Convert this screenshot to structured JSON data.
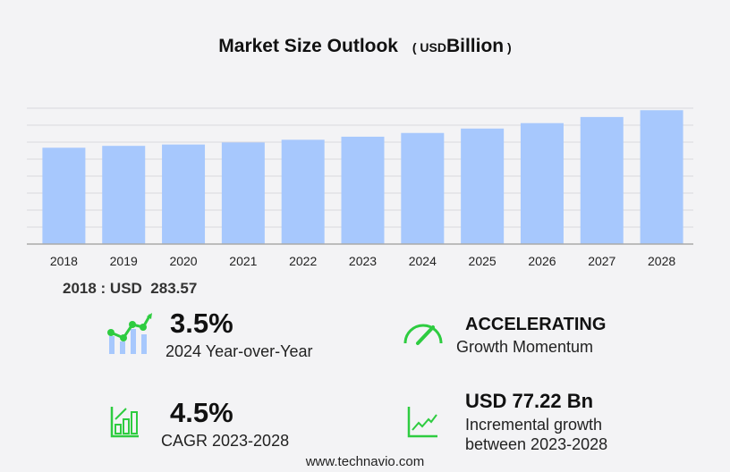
{
  "header": {
    "title": "Market Size Outlook",
    "unit_open": "(",
    "unit_small": "USD",
    "unit_big": "Billion",
    "unit_close": ")"
  },
  "chart_data": {
    "type": "bar",
    "title": "Market Size Outlook (USD Billion)",
    "categories": [
      "2018",
      "2019",
      "2020",
      "2021",
      "2022",
      "2023",
      "2024",
      "2025",
      "2026",
      "2027",
      "2028"
    ],
    "values": [
      283.57,
      289,
      293,
      299,
      307,
      316,
      327,
      340,
      356,
      374,
      394
    ],
    "ylim": [
      0,
      400
    ],
    "grid": true,
    "bar_color": "#a7c8fd"
  },
  "base_year": {
    "label": "2018 : USD",
    "value": "283.57"
  },
  "stats": {
    "yoy": {
      "value": "3.5%",
      "label": "2024 Year-over-Year"
    },
    "momentum": {
      "value": "ACCELERATING",
      "label": "Growth Momentum"
    },
    "cagr": {
      "value": "4.5%",
      "label": "CAGR 2023-2028"
    },
    "incremental": {
      "value": "USD 77.22 Bn",
      "label1": "Incremental growth",
      "label2": "between 2023-2028"
    }
  },
  "colors": {
    "accent_green": "#2ecc40",
    "bar": "#a7c8fd"
  },
  "footer": {
    "url": "www.technavio.com"
  }
}
